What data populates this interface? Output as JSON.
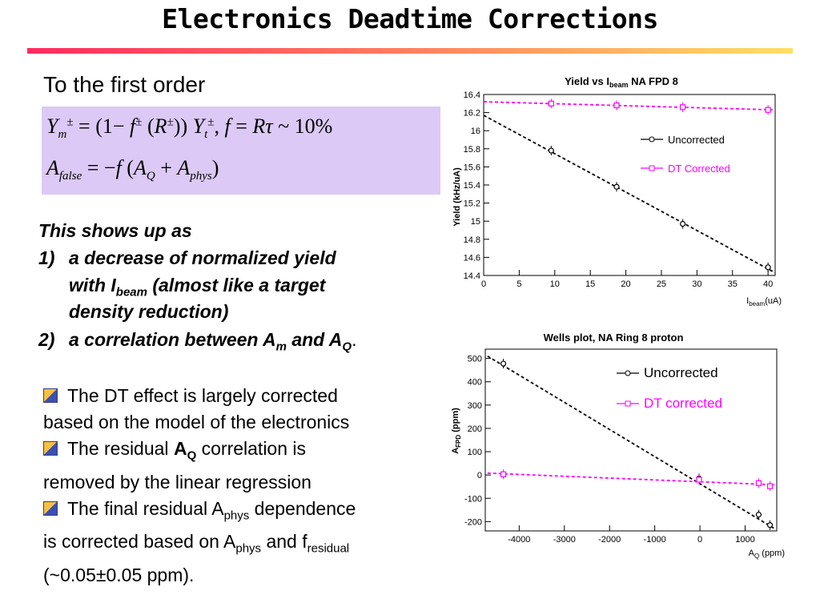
{
  "title": "Electronics Deadtime Corrections",
  "subhead": "To the first order",
  "equations": {
    "line1": {
      "Y": "Y",
      "m": "m",
      "pm": "±",
      "eq": " = (1− ",
      "f": "f",
      "R": "R",
      "t": "t",
      "mid": ")) ",
      "tail": ",  ",
      "f2": "f",
      "eq2": " = ",
      "R2": "R",
      "tau": "τ",
      "approx": " ~ 10%"
    },
    "line2": {
      "A": "A",
      "false": "false",
      "eq": " = −",
      "f": "f",
      "open": " (",
      "Q": "Q",
      "plus": " + ",
      "phys": "phys",
      "close": ")"
    }
  },
  "shows_up": {
    "heading": "This shows up as",
    "item1_num": "1)",
    "item1_a": "a decrease of normalized yield",
    "item1_b_pre": "with I",
    "item1_b_sub": "beam",
    "item1_b_post": " (almost like a target",
    "item1_c": "density reduction)",
    "item2_num": "2)",
    "item2_pre": "a correlation between A",
    "item2_sub1": "m",
    "item2_mid": " and A",
    "item2_sub2": "Q",
    "item2_end": "."
  },
  "bullets": {
    "b1_a": " The DT effect is largely corrected",
    "b1_b": "based on the model of the electronics",
    "b2_pre": " The residual ",
    "b2_bold": "A",
    "b2_boldsub": "Q",
    "b2_post": " correlation is",
    "b2_b": "removed by the linear regression",
    "b3_pre": " The final residual A",
    "b3_sub": "phys",
    "b3_post": " dependence",
    "b3_b_pre": "is corrected based on A",
    "b3_b_sub": "phys",
    "b3_b_mid": " and f",
    "b3_b_sub2": "residual",
    "b3_c": "(~0.05±0.05 ppm)."
  },
  "chart_data": [
    {
      "type": "line",
      "title": "Yield vs I_beam NA FPD 8",
      "title_parts": {
        "pre": "Yield vs I",
        "sub": "beam",
        "post": " NA FPD 8"
      },
      "xlabel": "I_beam(uA)",
      "xlabel_parts": {
        "pre": "I",
        "sub": "beam",
        "post": "(uA)"
      },
      "ylabel": "Yield (kHz/uA)",
      "xlim": [
        0,
        41
      ],
      "ylim": [
        14.4,
        16.4
      ],
      "xticks": [
        0,
        5,
        10,
        15,
        20,
        25,
        30,
        35,
        40
      ],
      "yticks": [
        14.4,
        14.6,
        14.8,
        15,
        15.2,
        15.4,
        15.6,
        15.8,
        16,
        16.2,
        16.4
      ],
      "legend_position": "right",
      "series": [
        {
          "name": "Uncorrected",
          "color": "#000000",
          "marker": "circle",
          "x": [
            9.5,
            18.7,
            28.0,
            40.0
          ],
          "y": [
            15.78,
            15.38,
            14.97,
            14.49
          ],
          "fit": {
            "x": [
              0,
              41
            ],
            "y": [
              16.17,
              14.43
            ]
          }
        },
        {
          "name": "DT Corrected",
          "color": "#ff00ff",
          "marker": "square",
          "x": [
            9.5,
            18.7,
            28.0,
            40.0
          ],
          "y": [
            16.3,
            16.28,
            16.26,
            16.23
          ],
          "fit": {
            "x": [
              0,
              41
            ],
            "y": [
              16.32,
              16.23
            ]
          }
        }
      ]
    },
    {
      "type": "line",
      "title": "Wells plot, NA Ring 8 proton",
      "xlabel": "A_Q (ppm)",
      "xlabel_parts": {
        "pre": "A",
        "sub": "Q",
        "post": " (ppm)"
      },
      "ylabel": "A_FPD (ppm)",
      "ylabel_parts": {
        "pre": "A",
        "sub": "FPD",
        "post": " (ppm)"
      },
      "xlim": [
        -4750,
        1700
      ],
      "ylim": [
        -240,
        540
      ],
      "xticks": [
        -4000,
        -3000,
        -2000,
        -1000,
        0,
        1000
      ],
      "yticks": [
        -200,
        -100,
        0,
        100,
        200,
        300,
        400,
        500
      ],
      "legend_position": "top-right",
      "series": [
        {
          "name": "Uncorrected",
          "color": "#000000",
          "marker": "circle",
          "x": [
            -4350,
            -20,
            1300,
            1550
          ],
          "y": [
            478,
            -15,
            -170,
            -215
          ],
          "fit": {
            "x": [
              -4700,
              1650
            ],
            "y": [
              510,
              -230
            ]
          }
        },
        {
          "name": "DT corrected",
          "color": "#ff00ff",
          "marker": "square",
          "x": [
            -4350,
            -20,
            1300,
            1550
          ],
          "y": [
            3,
            -20,
            -35,
            -48
          ],
          "fit": {
            "x": [
              -4700,
              1650
            ],
            "y": [
              8,
              -42
            ]
          }
        }
      ]
    }
  ]
}
